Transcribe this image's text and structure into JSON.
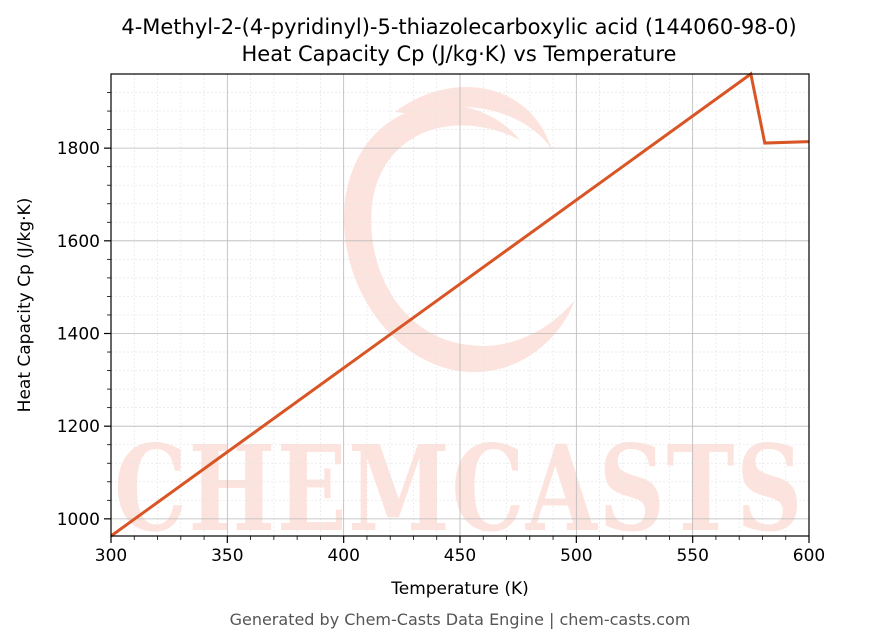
{
  "chart_data": {
    "type": "line",
    "title": "4-Methyl-2-(4-pyridinyl)-5-thiazolecarboxylic acid (144060-98-0)",
    "subtitle": "Heat Capacity Cp (J/kg·K) vs Temperature",
    "xlabel": "Temperature (K)",
    "ylabel": "Heat Capacity Cp (J/kg·K)",
    "xlim": [
      300,
      600
    ],
    "ylim": [
      963,
      1960
    ],
    "xticks": [
      300,
      350,
      400,
      450,
      500,
      550,
      600
    ],
    "yticks": [
      1000,
      1200,
      1400,
      1600,
      1800
    ],
    "grid": true,
    "legend": "none",
    "series": [
      {
        "color": "#d95525",
        "x": [
          300,
          575,
          581,
          600
        ],
        "y": [
          963,
          1960,
          1811,
          1814
        ]
      }
    ]
  },
  "watermark": {
    "text": "CHEMCASTS",
    "color": "#fde3dd"
  },
  "footer": "Generated by Chem-Casts Data Engine | chem-casts.com"
}
